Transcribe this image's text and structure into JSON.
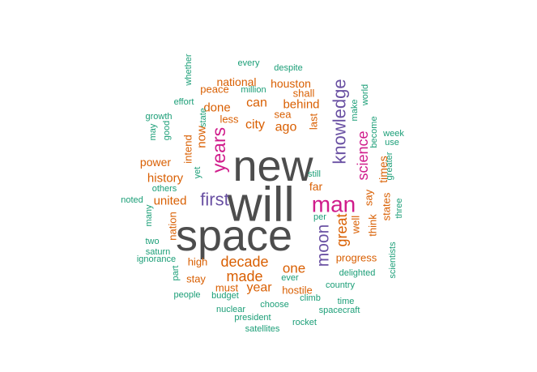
{
  "chart_data": {
    "type": "wordcloud",
    "colors": {
      "gray": "#4d4d4d",
      "purple": "#6a51a3",
      "magenta": "#d01c8b",
      "orange": "#d95f02",
      "teal": "#1b9e77"
    },
    "words": [
      {
        "text": "will",
        "color": "gray"
      },
      {
        "text": "new",
        "color": "gray"
      },
      {
        "text": "space",
        "color": "gray"
      },
      {
        "text": "man",
        "color": "magenta"
      },
      {
        "text": "years",
        "color": "magenta"
      },
      {
        "text": "knowledge",
        "color": "purple"
      },
      {
        "text": "first",
        "color": "purple"
      },
      {
        "text": "moon",
        "color": "purple"
      },
      {
        "text": "science",
        "color": "magenta"
      },
      {
        "text": "great",
        "color": "orange"
      },
      {
        "text": "decade",
        "color": "orange"
      },
      {
        "text": "made",
        "color": "orange"
      },
      {
        "text": "one",
        "color": "orange"
      },
      {
        "text": "year",
        "color": "orange"
      },
      {
        "text": "history",
        "color": "orange"
      },
      {
        "text": "united",
        "color": "orange"
      },
      {
        "text": "city",
        "color": "orange"
      },
      {
        "text": "ago",
        "color": "orange"
      },
      {
        "text": "can",
        "color": "orange"
      },
      {
        "text": "behind",
        "color": "orange"
      },
      {
        "text": "done",
        "color": "orange"
      },
      {
        "text": "now",
        "color": "orange"
      },
      {
        "text": "power",
        "color": "orange"
      },
      {
        "text": "houston",
        "color": "orange"
      },
      {
        "text": "national",
        "color": "orange"
      },
      {
        "text": "peace",
        "color": "orange"
      },
      {
        "text": "shall",
        "color": "orange"
      },
      {
        "text": "less",
        "color": "orange"
      },
      {
        "text": "last",
        "color": "orange"
      },
      {
        "text": "intend",
        "color": "orange"
      },
      {
        "text": "times",
        "color": "orange"
      },
      {
        "text": "far",
        "color": "orange"
      },
      {
        "text": "states",
        "color": "orange"
      },
      {
        "text": "say",
        "color": "orange"
      },
      {
        "text": "think",
        "color": "orange"
      },
      {
        "text": "well",
        "color": "orange"
      },
      {
        "text": "progress",
        "color": "orange"
      },
      {
        "text": "nation",
        "color": "orange"
      },
      {
        "text": "high",
        "color": "orange"
      },
      {
        "text": "stay",
        "color": "orange"
      },
      {
        "text": "must",
        "color": "orange"
      },
      {
        "text": "hostile",
        "color": "orange"
      },
      {
        "text": "sea",
        "color": "orange"
      },
      {
        "text": "every",
        "color": "teal"
      },
      {
        "text": "despite",
        "color": "teal"
      },
      {
        "text": "whether",
        "color": "teal"
      },
      {
        "text": "million",
        "color": "teal"
      },
      {
        "text": "effort",
        "color": "teal"
      },
      {
        "text": "state",
        "color": "teal"
      },
      {
        "text": "make",
        "color": "teal"
      },
      {
        "text": "world",
        "color": "teal"
      },
      {
        "text": "growth",
        "color": "teal"
      },
      {
        "text": "may",
        "color": "teal"
      },
      {
        "text": "good",
        "color": "teal"
      },
      {
        "text": "become",
        "color": "teal"
      },
      {
        "text": "week",
        "color": "teal"
      },
      {
        "text": "use",
        "color": "teal"
      },
      {
        "text": "greater",
        "color": "teal"
      },
      {
        "text": "yet",
        "color": "teal"
      },
      {
        "text": "still",
        "color": "teal"
      },
      {
        "text": "others",
        "color": "teal"
      },
      {
        "text": "noted",
        "color": "teal"
      },
      {
        "text": "many",
        "color": "teal"
      },
      {
        "text": "per",
        "color": "teal"
      },
      {
        "text": "three",
        "color": "teal"
      },
      {
        "text": "two",
        "color": "teal"
      },
      {
        "text": "saturn",
        "color": "teal"
      },
      {
        "text": "ignorance",
        "color": "teal"
      },
      {
        "text": "part",
        "color": "teal"
      },
      {
        "text": "scientists",
        "color": "teal"
      },
      {
        "text": "delighted",
        "color": "teal"
      },
      {
        "text": "ever",
        "color": "teal"
      },
      {
        "text": "country",
        "color": "teal"
      },
      {
        "text": "people",
        "color": "teal"
      },
      {
        "text": "budget",
        "color": "teal"
      },
      {
        "text": "climb",
        "color": "teal"
      },
      {
        "text": "nuclear",
        "color": "teal"
      },
      {
        "text": "choose",
        "color": "teal"
      },
      {
        "text": "time",
        "color": "teal"
      },
      {
        "text": "president",
        "color": "teal"
      },
      {
        "text": "spacecraft",
        "color": "teal"
      },
      {
        "text": "satellites",
        "color": "teal"
      },
      {
        "text": "rocket",
        "color": "teal"
      }
    ]
  }
}
